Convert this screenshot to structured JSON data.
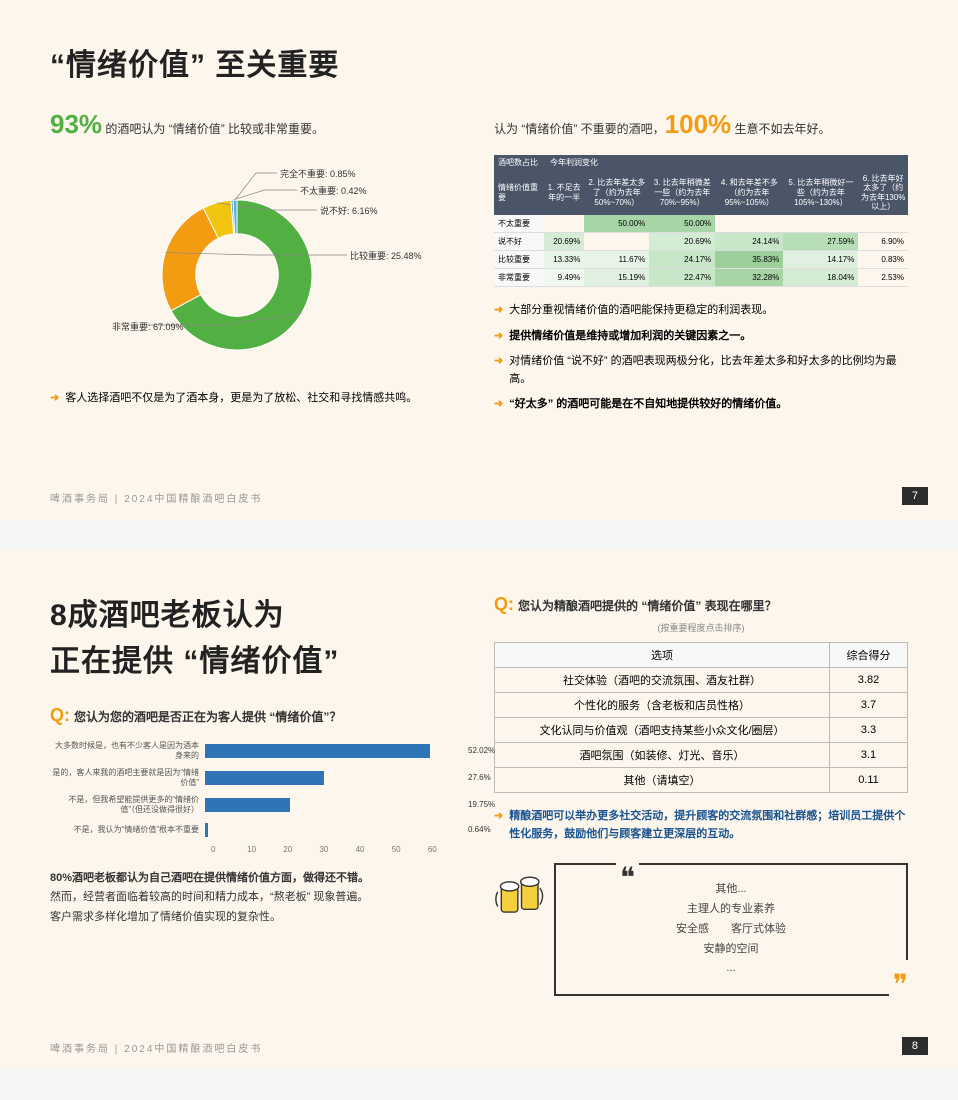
{
  "slide1": {
    "title": "“情绪价值” 至关重要",
    "left_stat_prefix": "",
    "left_stat_value": "93%",
    "left_stat_suffix": " 的酒吧认为 “情绪价值” 比较或非常重要。",
    "right_stat_prefix": "认为 “情绪价值” 不重要的酒吧，",
    "right_stat_value": "100%",
    "right_stat_suffix": " 生意不如去年好。",
    "donut": {
      "slices": [
        {
          "label": "非常重要: 67.09%",
          "value": 67.09,
          "color": "#52b043"
        },
        {
          "label": "比较重要: 25.48%",
          "value": 25.48,
          "color": "#f39c12"
        },
        {
          "label": "说不好: 6.16%",
          "value": 6.16,
          "color": "#f1c40f"
        },
        {
          "label": "不太重要: 0.42%",
          "value": 0.42,
          "color": "#3498db"
        },
        {
          "label": "完全不重要: 0.85%",
          "value": 0.85,
          "color": "#5dade2"
        }
      ],
      "inner_radius": 0.55
    },
    "left_bullets": [
      {
        "text": "客人选择酒吧不仅是为了酒本身，更是为了放松、社交和寻找情感共鸣。",
        "bold": false
      }
    ],
    "table": {
      "corner1": "酒吧数占比",
      "corner2": "今年利润变化",
      "row_header": "情绪价值重要",
      "cols": [
        "1. 不足去年的一半",
        "2. 比去年差太多了（约为去年50%~70%）",
        "3. 比去年稍微差一些（约为去年70%~95%）",
        "4. 和去年差不多（约为去年95%~105%）",
        "5. 比去年稍微好一些（约为去年105%~130%）",
        "6. 比去年好太多了（约为去年130%以上）"
      ],
      "rows": [
        {
          "label": "不太重要",
          "cells": [
            "",
            "50.00%",
            "50.00%",
            "",
            "",
            ""
          ],
          "shades": [
            "",
            "#a8d5a8",
            "#a8d5a8",
            "",
            "",
            ""
          ]
        },
        {
          "label": "说不好",
          "cells": [
            "20.69%",
            "",
            "20.69%",
            "24.14%",
            "27.59%",
            "6.90%"
          ],
          "shades": [
            "#d4ecd4",
            "",
            "#d4ecd4",
            "#c8e6c8",
            "#b8deb8",
            ""
          ]
        },
        {
          "label": "比较重要",
          "cells": [
            "13.33%",
            "11.67%",
            "24.17%",
            "35.83%",
            "14.17%",
            "0.83%"
          ],
          "shades": [
            "#e8f4e8",
            "#e8f4e8",
            "#c8e6c8",
            "#9ccf9c",
            "#e0f0e0",
            ""
          ]
        },
        {
          "label": "非常重要",
          "cells": [
            "9.49%",
            "15.19%",
            "22.47%",
            "32.28%",
            "18.04%",
            "2.53%"
          ],
          "shades": [
            "#f0f8f0",
            "#e0f0e0",
            "#c8e6c8",
            "#a8d5a8",
            "#d4ecd4",
            ""
          ]
        }
      ]
    },
    "right_bullets": [
      {
        "text": "大部分重视情绪价值的酒吧能保持更稳定的利润表现。",
        "bold": false
      },
      {
        "text": "提供情绪价值是维持或增加利润的关键因素之一。",
        "bold": true
      },
      {
        "text": "对情绪价值 “说不好” 的酒吧表现两极分化，比去年差太多和好太多的比例均为最高。",
        "bold": false
      },
      {
        "text": "“好太多” 的酒吧可能是在不自知地提供较好的情绪价值。",
        "bold": true
      }
    ],
    "footer": "啤酒事务局 | 2024中国精酿酒吧白皮书",
    "page": "7"
  },
  "slide2": {
    "title_l1": "8成酒吧老板认为",
    "title_l2": "正在提供 “情绪价值”",
    "q_left": "您认为您的酒吧是否正在为客人提供 “情绪价值”？",
    "hbar": {
      "max": 60,
      "ticks": [
        "0",
        "10",
        "20",
        "30",
        "40",
        "50",
        "60"
      ],
      "bars": [
        {
          "label": "大多数时候是，也有不少客人是因为酒本身来的",
          "value": 52.02,
          "display": "52.02%"
        },
        {
          "label": "是的，客人来我的酒吧主要就是因为“情绪价值”",
          "value": 27.6,
          "display": "27.6%"
        },
        {
          "label": "不是，但我希望能提供更多的“情绪价值”（但还没做得很好）",
          "value": 19.75,
          "display": "19.75%"
        },
        {
          "label": "不是，我认为“情绪价值”根本不重要",
          "value": 0.64,
          "display": "0.64%"
        }
      ],
      "bar_color": "#2e75b6"
    },
    "para_lines": [
      "80%酒吧老板都认为自己酒吧在提供情绪价值方面，做得还不错。",
      "然而，经营者面临着较高的时间和精力成本，“熬老板” 现象普遍。",
      "客户需求多样化增加了情绪价值实现的复杂性。"
    ],
    "q_right": "您认为精酿酒吧提供的 “情绪价值” 表现在哪里？",
    "q_right_sub": "(按重要程度点击排序)",
    "score_table": {
      "headers": [
        "选项",
        "综合得分"
      ],
      "rows": [
        [
          "社交体验（酒吧的交流氛围、酒友社群）",
          "3.82"
        ],
        [
          "个性化的服务（含老板和店员性格）",
          "3.7"
        ],
        [
          "文化认同与价值观（酒吧支持某些小众文化/圈层）",
          "3.3"
        ],
        [
          "酒吧氛围（如装修、灯光、音乐）",
          "3.1"
        ],
        [
          "其他（请填空）",
          "0.11"
        ]
      ]
    },
    "right_bullet": "精酿酒吧可以举办更多社交活动，提升顾客的交流氛围和社群感；培训员工提供个性化服务，鼓励他们与顾客建立更深层的互动。",
    "quote_lines": [
      "其他...",
      "主理人的专业素养",
      "安全感　　客厅式体验",
      "安静的空间",
      "..."
    ],
    "footer": "啤酒事务局 | 2024中国精酿酒吧白皮书",
    "page": "8"
  }
}
